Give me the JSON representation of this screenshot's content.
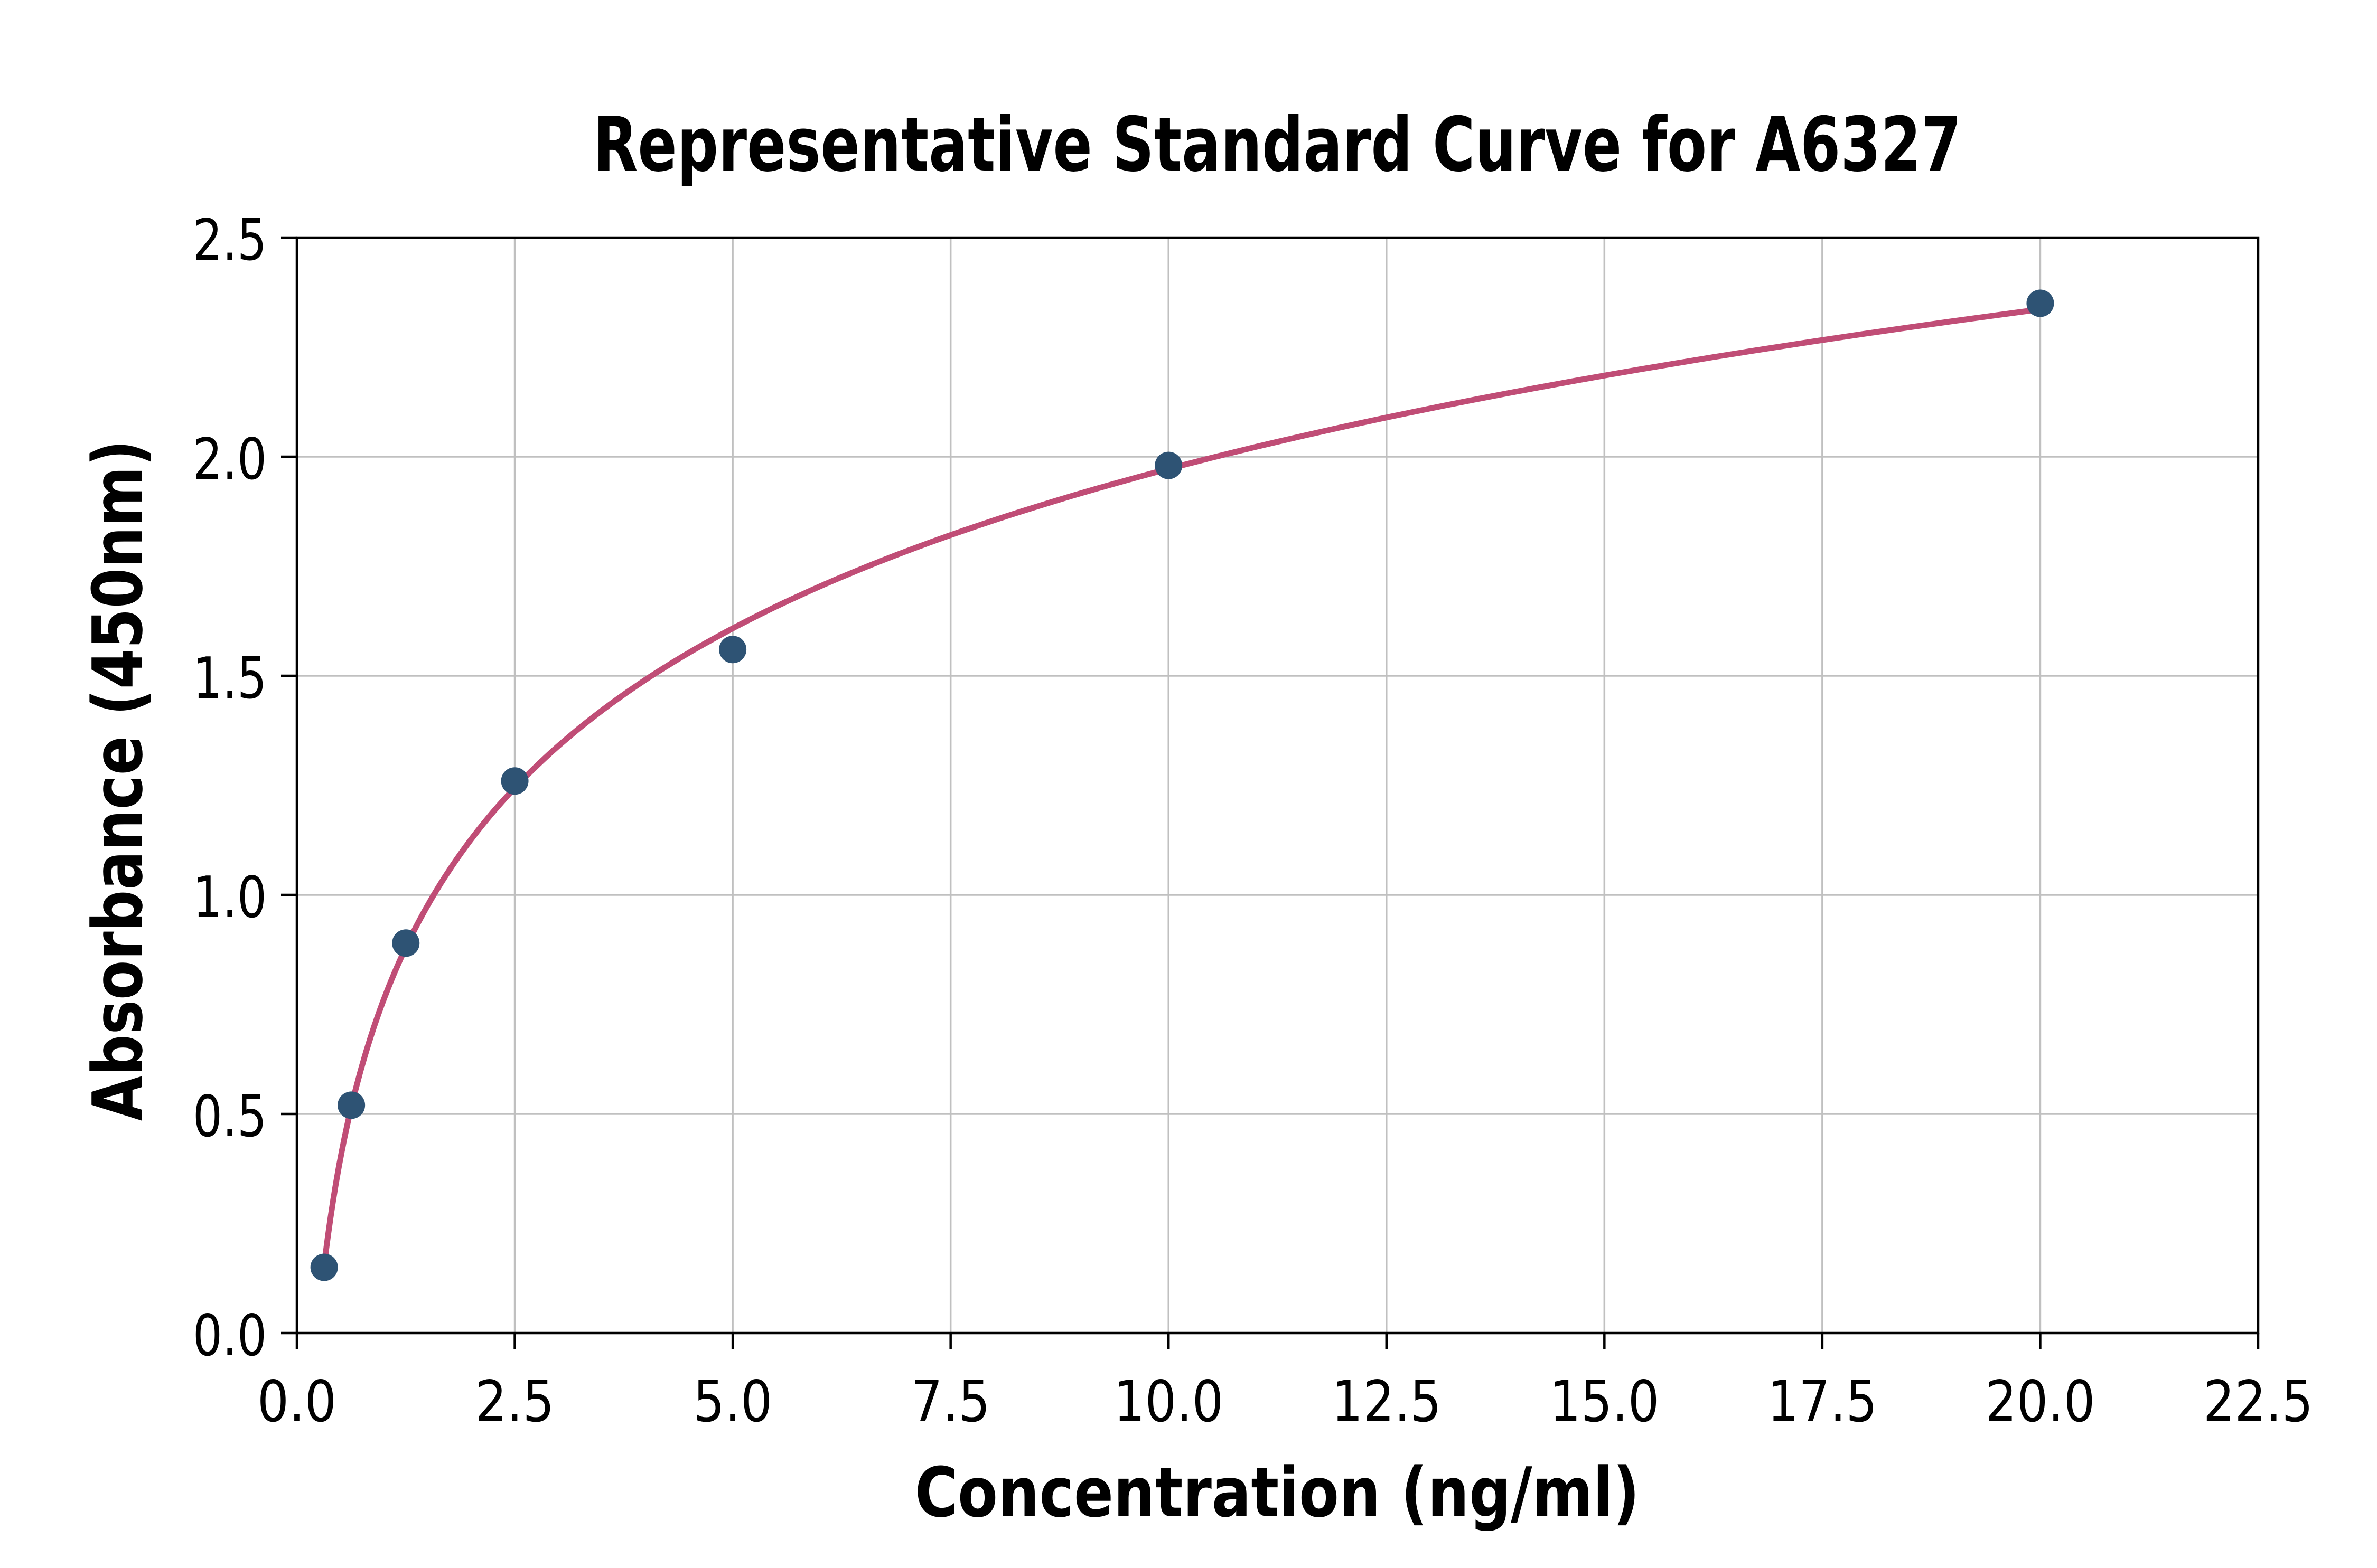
{
  "page": {
    "background": "#ffffff"
  },
  "chart_data": {
    "type": "scatter",
    "title": "Representative Standard Curve for A6327",
    "xlabel": "Concentration (ng/ml)",
    "ylabel": "Absorbance (450nm)",
    "xlim": [
      0,
      22.5
    ],
    "ylim": [
      0,
      2.5
    ],
    "xticks": [
      0.0,
      2.5,
      5.0,
      7.5,
      10.0,
      12.5,
      15.0,
      17.5,
      20.0,
      22.5
    ],
    "yticks": [
      0.0,
      0.5,
      1.0,
      1.5,
      2.0,
      2.5
    ],
    "xtick_labels": [
      "0.0",
      "2.5",
      "5.0",
      "7.5",
      "10.0",
      "12.5",
      "15.0",
      "17.5",
      "20.0",
      "22.5"
    ],
    "ytick_labels": [
      "0.0",
      "0.5",
      "1.0",
      "1.5",
      "2.0",
      "2.5"
    ],
    "grid": true,
    "legend_position": "none",
    "series": [
      {
        "name": "standard-points",
        "type": "scatter",
        "x": [
          0.313,
          0.625,
          1.25,
          2.5,
          5.0,
          10.0,
          20.0
        ],
        "y": [
          0.15,
          0.52,
          0.89,
          1.26,
          1.56,
          1.98,
          2.35
        ],
        "marker": "circle",
        "color": "#2e5374"
      },
      {
        "name": "fit-curve",
        "type": "line",
        "fit": "logarithmic least-squares through standard-points (y = a + b*ln(x))",
        "x_range": [
          0.313,
          20.0
        ],
        "color": "#c04d76"
      }
    ],
    "colors": {
      "marker": "#2e5374",
      "curve": "#c04d76",
      "grid": "#c0c0c0",
      "axis": "#000000",
      "text": "#000000",
      "background": "#ffffff"
    }
  }
}
